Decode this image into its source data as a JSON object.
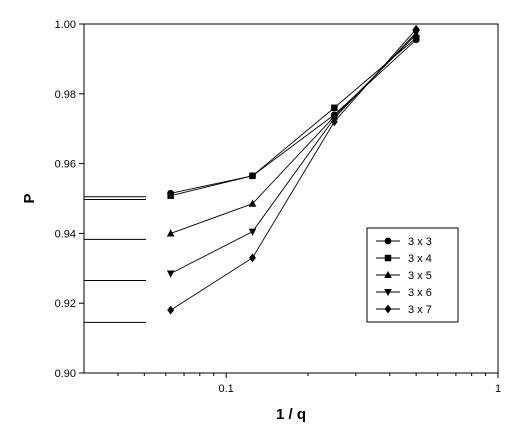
{
  "chart_data": {
    "type": "line",
    "title": "",
    "xlabel": "1 / q",
    "ylabel": "P",
    "x_scale": "log",
    "xlim": [
      0.03,
      1
    ],
    "ylim": [
      0.9,
      1.0
    ],
    "x_ticks": [
      0.1,
      1
    ],
    "x_tick_labels": [
      "0.1",
      "1"
    ],
    "y_ticks": [
      0.9,
      0.92,
      0.94,
      0.96,
      0.98,
      1.0
    ],
    "y_tick_labels": [
      "0.90",
      "0.92",
      "0.94",
      "0.96",
      "0.98",
      "1.00"
    ],
    "grid": false,
    "legend_position": "right",
    "x": [
      0.0625,
      0.125,
      0.25,
      0.5
    ],
    "series": [
      {
        "name": "3 x 3",
        "marker": "circle",
        "values": [
          0.9515,
          0.9565,
          0.974,
          0.9955
        ]
      },
      {
        "name": "3 x 4",
        "marker": "square",
        "values": [
          0.9508,
          0.9565,
          0.976,
          0.996
        ]
      },
      {
        "name": "3 x 5",
        "marker": "triangle-up",
        "values": [
          0.94,
          0.9485,
          0.9735,
          0.997
        ]
      },
      {
        "name": "3 x 6",
        "marker": "triangle-down",
        "values": [
          0.9285,
          0.9405,
          0.973,
          0.9975
        ]
      },
      {
        "name": "3 x 7",
        "marker": "diamond",
        "values": [
          0.918,
          0.933,
          0.972,
          0.9985
        ]
      }
    ],
    "extrapolated_limits": [
      0.9505,
      0.9497,
      0.9383,
      0.9265,
      0.9145
    ]
  }
}
